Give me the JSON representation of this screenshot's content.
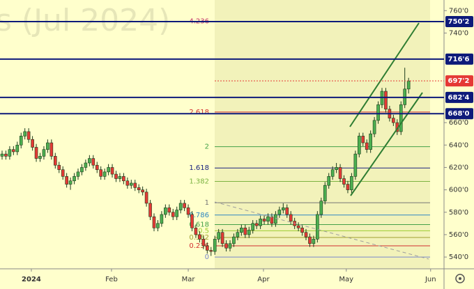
{
  "chart_data": {
    "type": "candlestick",
    "title": "s (Jul 2024)",
    "up_color": "#4caf50",
    "down_color": "#e53935",
    "ylim": [
      529.5,
      767
    ],
    "yticks": [
      {
        "value": 760,
        "label": "760'0"
      },
      {
        "value": 740,
        "label": "740'0"
      },
      {
        "value": 660,
        "label": "660'0"
      },
      {
        "value": 640,
        "label": "640'0"
      },
      {
        "value": 620,
        "label": "620'0"
      },
      {
        "value": 600,
        "label": "600'0"
      },
      {
        "value": 580,
        "label": "580'0"
      },
      {
        "value": 560,
        "label": "560'0"
      },
      {
        "value": 540,
        "label": "540'0"
      }
    ],
    "xlim": [
      -0.55,
      116.33
    ],
    "xticks": [
      {
        "value": 7.7,
        "label": "2024"
      },
      {
        "value": 28.8,
        "label": "Feb"
      },
      {
        "value": 49,
        "label": "Mar"
      },
      {
        "value": 68.8,
        "label": "Apr"
      },
      {
        "value": 90.6,
        "label": "May"
      },
      {
        "value": 112.8,
        "label": "Jun"
      }
    ],
    "levels": [
      {
        "value": 750.25,
        "label": "750'2",
        "color": "#0d1a7a"
      },
      {
        "value": 716.75,
        "label": "716'6",
        "color": "#0d1a7a"
      },
      {
        "value": 682.5,
        "label": "682'4",
        "color": "#0d1a7a"
      },
      {
        "value": 668,
        "label": "668'0",
        "color": "#0d1a7a"
      },
      {
        "value": 697.25,
        "label": "697'2",
        "color": "#e53935"
      }
    ],
    "fib_levels": [
      {
        "value": 750.5,
        "label": "4.236",
        "color": "#c0306a"
      },
      {
        "value": 669.5,
        "label": "2.618",
        "color": "#d32f2f"
      },
      {
        "value": 638.5,
        "label": "2",
        "color": "#43a047"
      },
      {
        "value": 619.5,
        "label": "1.618",
        "color": "#1a237e"
      },
      {
        "value": 607.5,
        "label": "1.382",
        "color": "#7cb342"
      },
      {
        "value": 588.5,
        "label": "1",
        "color": "#757575"
      },
      {
        "value": 577.5,
        "label": "0.786",
        "color": "#2e86c1"
      },
      {
        "value": 569,
        "label": "0.618",
        "color": "#43a047"
      },
      {
        "value": 563.5,
        "label": "0.5",
        "color": "#9ccc32"
      },
      {
        "value": 557.5,
        "label": "0.382",
        "color": "#a0a030"
      },
      {
        "value": 550,
        "label": "0.236",
        "color": "#d32f2f"
      },
      {
        "value": 540,
        "label": "0",
        "color": "#7986cb"
      }
    ],
    "candles": [
      [
        630,
        635,
        627,
        632
      ],
      [
        632,
        635,
        627,
        630
      ],
      [
        630,
        639,
        627,
        636
      ],
      [
        636,
        639,
        631,
        634
      ],
      [
        634,
        643,
        631,
        640
      ],
      [
        640,
        651,
        637,
        648
      ],
      [
        648,
        655,
        645,
        652
      ],
      [
        652,
        655,
        642,
        645
      ],
      [
        645,
        648,
        635,
        638
      ],
      [
        638,
        641,
        625,
        628
      ],
      [
        628,
        633,
        625,
        630
      ],
      [
        630,
        639,
        627,
        636
      ],
      [
        636,
        645,
        633,
        642
      ],
      [
        642,
        645,
        627,
        630
      ],
      [
        630,
        633,
        619,
        622
      ],
      [
        622,
        625,
        615,
        618
      ],
      [
        618,
        621,
        609,
        612
      ],
      [
        612,
        615,
        602,
        605
      ],
      [
        605,
        611,
        600,
        608
      ],
      [
        608,
        615,
        605,
        612
      ],
      [
        612,
        619,
        609,
        616
      ],
      [
        616,
        623,
        613,
        620
      ],
      [
        620,
        627,
        617,
        624
      ],
      [
        624,
        631,
        621,
        628
      ],
      [
        628,
        631,
        619,
        622
      ],
      [
        622,
        625,
        615,
        618
      ],
      [
        618,
        621,
        609,
        612
      ],
      [
        612,
        619,
        609,
        616
      ],
      [
        616,
        623,
        613,
        620
      ],
      [
        620,
        623,
        611,
        614
      ],
      [
        614,
        617,
        607,
        610
      ],
      [
        610,
        615,
        607,
        612
      ],
      [
        612,
        615,
        605,
        608
      ],
      [
        608,
        611,
        601,
        604
      ],
      [
        604,
        609,
        601,
        606
      ],
      [
        606,
        609,
        599,
        602
      ],
      [
        602,
        605,
        597,
        600
      ],
      [
        600,
        603,
        595,
        598
      ],
      [
        598,
        601,
        585,
        588
      ],
      [
        588,
        591,
        573,
        576
      ],
      [
        576,
        579,
        563,
        566
      ],
      [
        566,
        573,
        563,
        570
      ],
      [
        570,
        581,
        567,
        578
      ],
      [
        578,
        587,
        575,
        584
      ],
      [
        584,
        587,
        577,
        580
      ],
      [
        580,
        583,
        573,
        576
      ],
      [
        576,
        585,
        573,
        582
      ],
      [
        582,
        591,
        579,
        588
      ],
      [
        588,
        591,
        581,
        584
      ],
      [
        584,
        587,
        575,
        578
      ],
      [
        578,
        581,
        563,
        566
      ],
      [
        566,
        569,
        557,
        560
      ],
      [
        560,
        563,
        553,
        556
      ],
      [
        556,
        559,
        547,
        550
      ],
      [
        550,
        553,
        543,
        546
      ],
      [
        546,
        549,
        541,
        545
      ],
      [
        545,
        559,
        542,
        556
      ],
      [
        556,
        565,
        553,
        562
      ],
      [
        562,
        565,
        549,
        552
      ],
      [
        552,
        555,
        545,
        548
      ],
      [
        548,
        555,
        545,
        552
      ],
      [
        552,
        561,
        549,
        558
      ],
      [
        558,
        565,
        555,
        562
      ],
      [
        562,
        569,
        559,
        566
      ],
      [
        566,
        569,
        557,
        560
      ],
      [
        560,
        567,
        557,
        564
      ],
      [
        564,
        573,
        561,
        570
      ],
      [
        570,
        573,
        565,
        568
      ],
      [
        568,
        577,
        565,
        574
      ],
      [
        574,
        577,
        569,
        572
      ],
      [
        572,
        579,
        569,
        576
      ],
      [
        576,
        579,
        567,
        570
      ],
      [
        570,
        581,
        567,
        578
      ],
      [
        578,
        585,
        575,
        582
      ],
      [
        582,
        588,
        579,
        584
      ],
      [
        584,
        587,
        575,
        578
      ],
      [
        578,
        581,
        569,
        572
      ],
      [
        572,
        575,
        565,
        568
      ],
      [
        568,
        571,
        563,
        566
      ],
      [
        566,
        569,
        559,
        562
      ],
      [
        562,
        565,
        555,
        558
      ],
      [
        558,
        561,
        549,
        552
      ],
      [
        552,
        559,
        549,
        556
      ],
      [
        556,
        581,
        553,
        578
      ],
      [
        578,
        593,
        575,
        590
      ],
      [
        590,
        607,
        587,
        604
      ],
      [
        604,
        615,
        601,
        612
      ],
      [
        612,
        621,
        609,
        618
      ],
      [
        618,
        624,
        615,
        620
      ],
      [
        620,
        623,
        607,
        610
      ],
      [
        610,
        613,
        602,
        605
      ],
      [
        605,
        608,
        597,
        600
      ],
      [
        600,
        615,
        597,
        612
      ],
      [
        612,
        635,
        609,
        632
      ],
      [
        632,
        651,
        629,
        648
      ],
      [
        648,
        651,
        639,
        642
      ],
      [
        642,
        645,
        633,
        636
      ],
      [
        636,
        653,
        633,
        650
      ],
      [
        650,
        665,
        647,
        662
      ],
      [
        662,
        679,
        659,
        676
      ],
      [
        676,
        691,
        673,
        688
      ],
      [
        688,
        691,
        669,
        672
      ],
      [
        672,
        675,
        661,
        664
      ],
      [
        664,
        667,
        657,
        660
      ],
      [
        660,
        663,
        649,
        652
      ],
      [
        652,
        679,
        649,
        676
      ],
      [
        676,
        709,
        673,
        690
      ],
      [
        690,
        700,
        686,
        697.25
      ]
    ]
  }
}
